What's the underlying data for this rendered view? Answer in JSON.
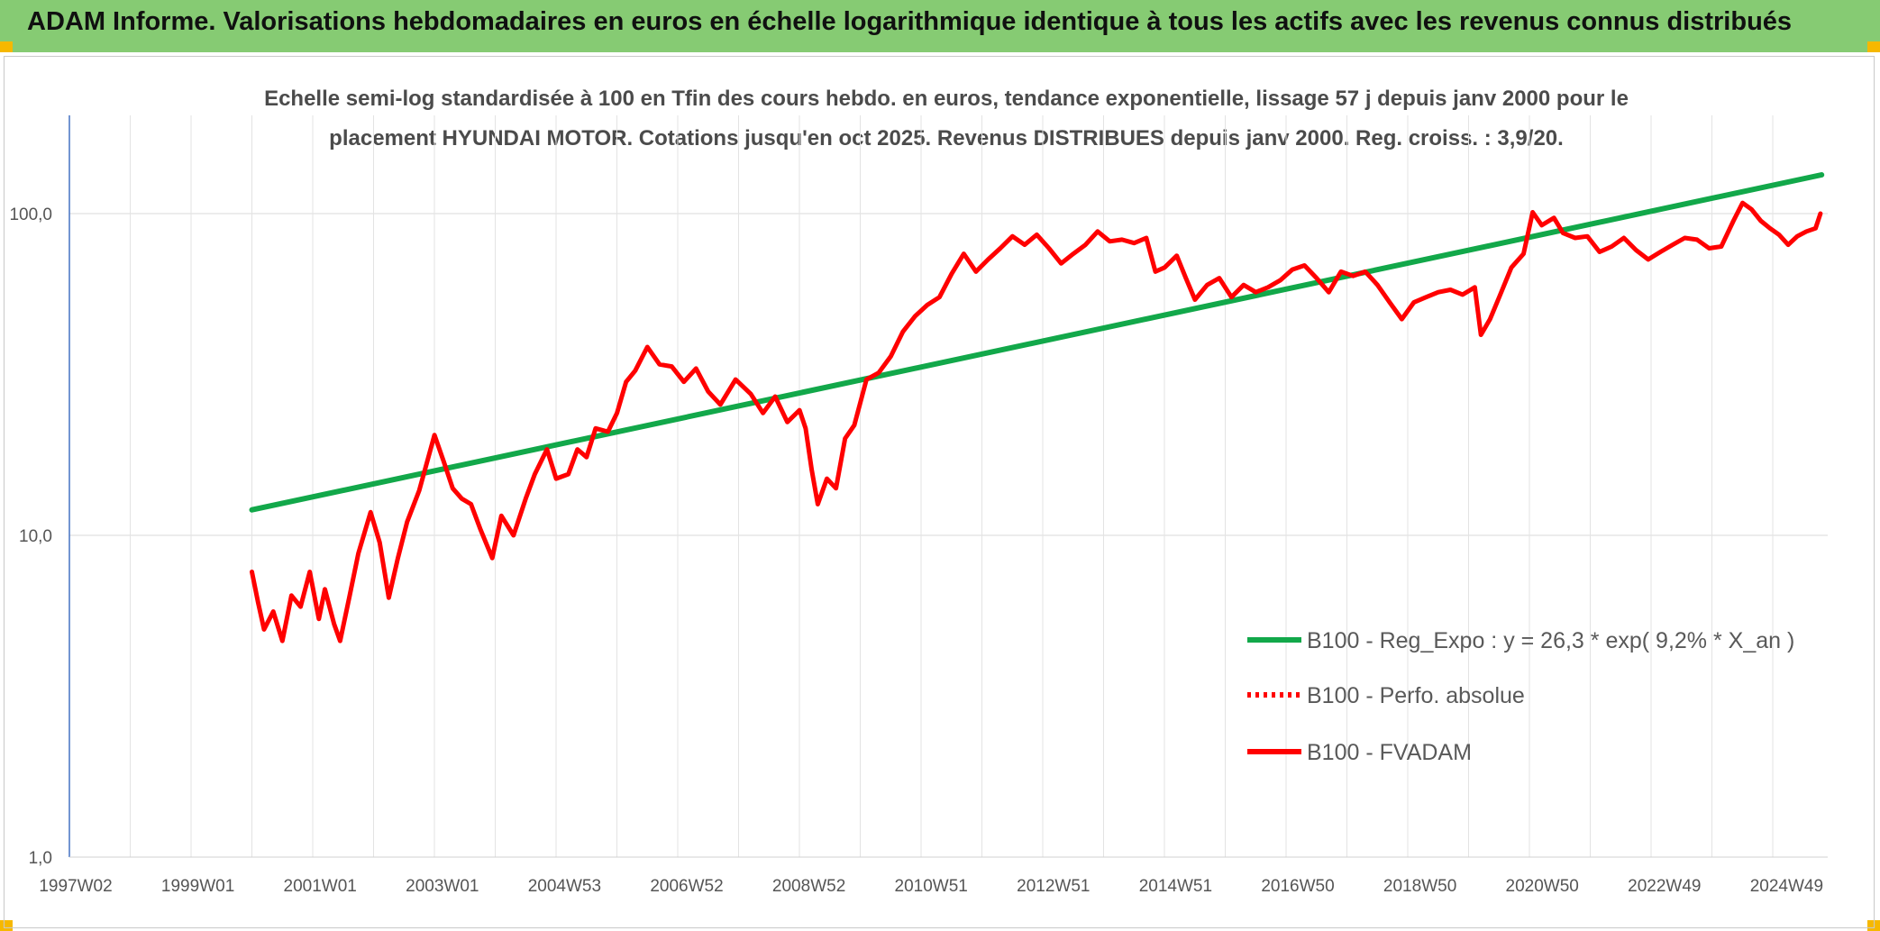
{
  "header": {
    "title": "ADAM Informe. Valorisations hebdomadaires en euros en échelle logarithmique identique à tous les actifs avec les revenus connus distribués",
    "background_color": "#86cb73"
  },
  "chart_data": {
    "type": "line",
    "title": "Echelle semi-log standardisée à 100 en Tfin des cours hebdo. en euros, tendance exponentielle, lissage 57 j depuis janv 2000 pour le placement HYUNDAI MOTOR. Cotations jusqu'en oct 2025. Revenus DISTRIBUES depuis janv 2000. Reg. croiss. : 3,9/20.",
    "y_scale": "log",
    "ylim": [
      1,
      180
    ],
    "xlim": [
      1997.0,
      2025.9
    ],
    "y_ticks": [
      "1,0",
      "10,0",
      "100,0"
    ],
    "x_tick_labels": [
      "1997W02",
      "1999W01",
      "2001W01",
      "2003W01",
      "2004W53",
      "2006W52",
      "2008W52",
      "2010W51",
      "2012W51",
      "2014W51",
      "2016W50",
      "2018W50",
      "2020W50",
      "2022W49",
      "2024W49"
    ],
    "grid": "vertical and horizontal light gridlines",
    "legend_position": "lower-right",
    "series": [
      {
        "name": "B100 - Reg_Expo : y = 26,3 * exp( 9,2% *  X_an )",
        "color": "#12a84a",
        "style": "solid",
        "points": [
          [
            2000.0,
            12.0
          ],
          [
            2025.8,
            132.0
          ]
        ]
      },
      {
        "name": "B100 - Perfo. absolue",
        "color": "#ff0000",
        "style": "dotted",
        "points": []
      },
      {
        "name": "B100 - FVADAM",
        "color": "#ff0000",
        "style": "solid",
        "points": [
          [
            2000.0,
            7.7
          ],
          [
            2000.1,
            6.2
          ],
          [
            2000.2,
            5.1
          ],
          [
            2000.35,
            5.8
          ],
          [
            2000.5,
            4.7
          ],
          [
            2000.65,
            6.5
          ],
          [
            2000.8,
            6.0
          ],
          [
            2000.95,
            7.7
          ],
          [
            2001.1,
            5.5
          ],
          [
            2001.2,
            6.8
          ],
          [
            2001.35,
            5.3
          ],
          [
            2001.45,
            4.7
          ],
          [
            2001.6,
            6.4
          ],
          [
            2001.75,
            8.8
          ],
          [
            2001.95,
            11.8
          ],
          [
            2002.1,
            9.5
          ],
          [
            2002.25,
            6.4
          ],
          [
            2002.4,
            8.5
          ],
          [
            2002.55,
            11.0
          ],
          [
            2002.75,
            13.8
          ],
          [
            2003.0,
            20.5
          ],
          [
            2003.15,
            17.0
          ],
          [
            2003.3,
            14.0
          ],
          [
            2003.45,
            13.0
          ],
          [
            2003.6,
            12.5
          ],
          [
            2003.75,
            10.5
          ],
          [
            2003.95,
            8.5
          ],
          [
            2004.1,
            11.5
          ],
          [
            2004.3,
            10.0
          ],
          [
            2004.5,
            13.0
          ],
          [
            2004.65,
            15.5
          ],
          [
            2004.85,
            18.5
          ],
          [
            2005.0,
            15.0
          ],
          [
            2005.2,
            15.5
          ],
          [
            2005.35,
            18.5
          ],
          [
            2005.5,
            17.5
          ],
          [
            2005.65,
            21.5
          ],
          [
            2005.85,
            21.0
          ],
          [
            2006.0,
            24.0
          ],
          [
            2006.15,
            30.0
          ],
          [
            2006.3,
            32.5
          ],
          [
            2006.5,
            38.5
          ],
          [
            2006.7,
            34.0
          ],
          [
            2006.9,
            33.5
          ],
          [
            2007.1,
            30.0
          ],
          [
            2007.3,
            33.0
          ],
          [
            2007.5,
            28.0
          ],
          [
            2007.7,
            25.5
          ],
          [
            2007.95,
            30.5
          ],
          [
            2008.2,
            27.5
          ],
          [
            2008.4,
            24.0
          ],
          [
            2008.6,
            27.0
          ],
          [
            2008.8,
            22.5
          ],
          [
            2009.0,
            24.5
          ],
          [
            2009.1,
            21.5
          ],
          [
            2009.2,
            16.0
          ],
          [
            2009.3,
            12.5
          ],
          [
            2009.45,
            15.0
          ],
          [
            2009.6,
            14.0
          ],
          [
            2009.75,
            20.0
          ],
          [
            2009.9,
            22.0
          ],
          [
            2010.1,
            30.5
          ],
          [
            2010.3,
            32.0
          ],
          [
            2010.5,
            36.0
          ],
          [
            2010.7,
            43.0
          ],
          [
            2010.9,
            48.0
          ],
          [
            2011.1,
            52.0
          ],
          [
            2011.3,
            55.0
          ],
          [
            2011.5,
            65.0
          ],
          [
            2011.7,
            75.0
          ],
          [
            2011.9,
            66.0
          ],
          [
            2012.1,
            72.0
          ],
          [
            2012.3,
            78.0
          ],
          [
            2012.5,
            85.0
          ],
          [
            2012.7,
            80.0
          ],
          [
            2012.9,
            86.0
          ],
          [
            2013.1,
            78.0
          ],
          [
            2013.3,
            70.0
          ],
          [
            2013.5,
            75.0
          ],
          [
            2013.7,
            80.0
          ],
          [
            2013.9,
            88.0
          ],
          [
            2014.1,
            82.0
          ],
          [
            2014.3,
            83.0
          ],
          [
            2014.5,
            81.0
          ],
          [
            2014.7,
            84.0
          ],
          [
            2014.85,
            66.0
          ],
          [
            2015.0,
            68.0
          ],
          [
            2015.2,
            74.0
          ],
          [
            2015.35,
            63.0
          ],
          [
            2015.5,
            54.0
          ],
          [
            2015.7,
            60.0
          ],
          [
            2015.9,
            63.0
          ],
          [
            2016.1,
            55.0
          ],
          [
            2016.3,
            60.0
          ],
          [
            2016.5,
            57.0
          ],
          [
            2016.7,
            59.0
          ],
          [
            2016.9,
            62.0
          ],
          [
            2017.1,
            67.0
          ],
          [
            2017.3,
            69.0
          ],
          [
            2017.5,
            63.0
          ],
          [
            2017.7,
            57.0
          ],
          [
            2017.9,
            66.0
          ],
          [
            2018.1,
            64.0
          ],
          [
            2018.3,
            66.0
          ],
          [
            2018.5,
            60.0
          ],
          [
            2018.7,
            53.0
          ],
          [
            2018.9,
            47.0
          ],
          [
            2019.1,
            53.0
          ],
          [
            2019.3,
            55.0
          ],
          [
            2019.5,
            57.0
          ],
          [
            2019.7,
            58.0
          ],
          [
            2019.9,
            56.0
          ],
          [
            2020.1,
            59.0
          ],
          [
            2020.2,
            42.0
          ],
          [
            2020.35,
            47.0
          ],
          [
            2020.5,
            55.0
          ],
          [
            2020.7,
            68.0
          ],
          [
            2020.9,
            75.0
          ],
          [
            2021.05,
            101.0
          ],
          [
            2021.2,
            92.0
          ],
          [
            2021.4,
            97.0
          ],
          [
            2021.55,
            87.0
          ],
          [
            2021.75,
            84.0
          ],
          [
            2021.95,
            85.0
          ],
          [
            2022.15,
            76.0
          ],
          [
            2022.35,
            79.0
          ],
          [
            2022.55,
            84.0
          ],
          [
            2022.75,
            77.0
          ],
          [
            2022.95,
            72.0
          ],
          [
            2023.15,
            76.0
          ],
          [
            2023.35,
            80.0
          ],
          [
            2023.55,
            84.0
          ],
          [
            2023.75,
            83.0
          ],
          [
            2023.95,
            78.0
          ],
          [
            2024.15,
            79.0
          ],
          [
            2024.35,
            95.0
          ],
          [
            2024.5,
            108.0
          ],
          [
            2024.65,
            103.0
          ],
          [
            2024.8,
            95.0
          ],
          [
            2024.95,
            90.0
          ],
          [
            2025.1,
            86.0
          ],
          [
            2025.25,
            80.0
          ],
          [
            2025.4,
            85.0
          ],
          [
            2025.55,
            88.0
          ],
          [
            2025.7,
            90.0
          ],
          [
            2025.78,
            100.0
          ]
        ]
      }
    ]
  }
}
